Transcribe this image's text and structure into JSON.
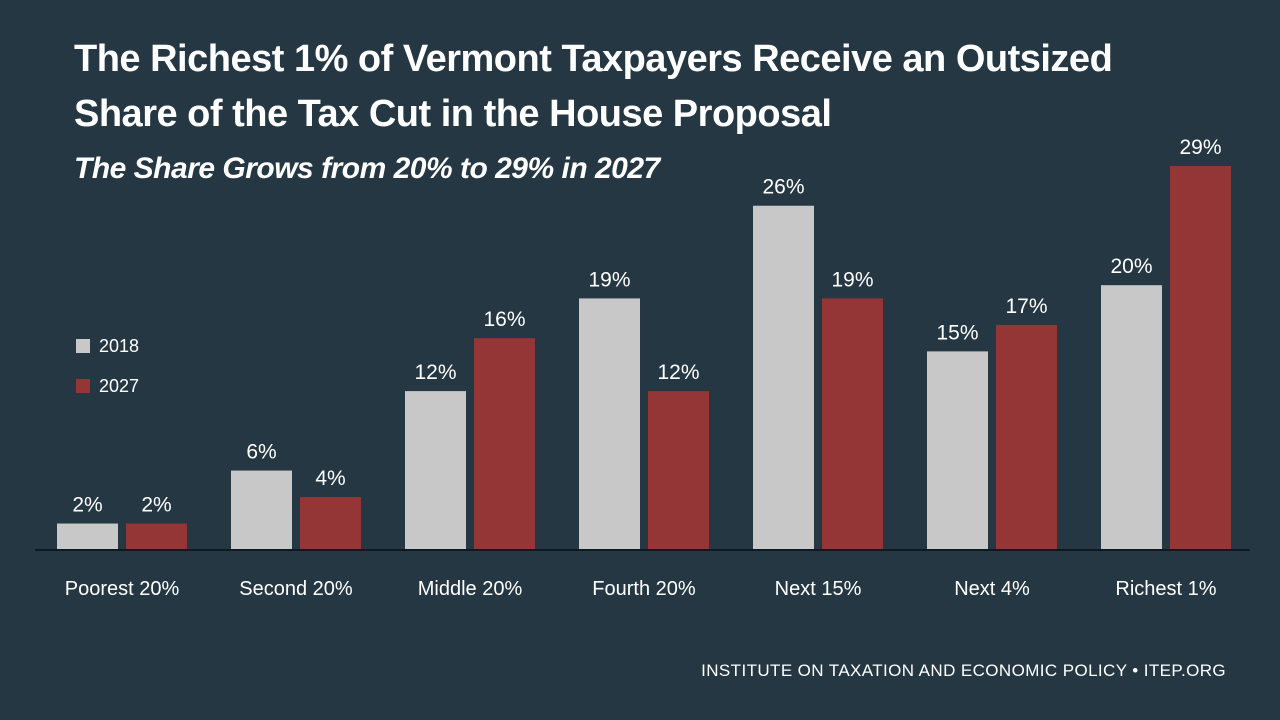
{
  "header": {
    "title": "The Richest 1% of Vermont Taxpayers Receive an Outsized Share of the Tax Cut in the House Proposal",
    "subtitle": "The Share Grows from 20% to 29% in 2027"
  },
  "footer": {
    "source": "INSTITUTE ON TAXATION AND ECONOMIC POLICY • ITEP.ORG"
  },
  "colors": {
    "background": "#243742",
    "series_2018": "#c8c8c8",
    "series_2027": "#943536",
    "axis": "#0f1a20"
  },
  "chart_data": {
    "type": "bar",
    "title": "The Richest 1% of Vermont Taxpayers Receive an Outsized Share of the Tax Cut in the House Proposal",
    "subtitle": "The Share Grows from 20% to 29% in 2027",
    "xlabel": "",
    "ylabel": "",
    "ylim": [
      0,
      29
    ],
    "grid": false,
    "legend_position": "left",
    "value_format": "percent",
    "categories": [
      "Poorest 20%",
      "Second 20%",
      "Middle 20%",
      "Fourth 20%",
      "Next 15%",
      "Next 4%",
      "Richest 1%"
    ],
    "series": [
      {
        "name": "2018",
        "color": "#c8c8c8",
        "values": [
          2,
          6,
          12,
          19,
          26,
          15,
          20
        ]
      },
      {
        "name": "2027",
        "color": "#943536",
        "values": [
          2,
          4,
          16,
          12,
          19,
          17,
          29
        ]
      }
    ]
  }
}
